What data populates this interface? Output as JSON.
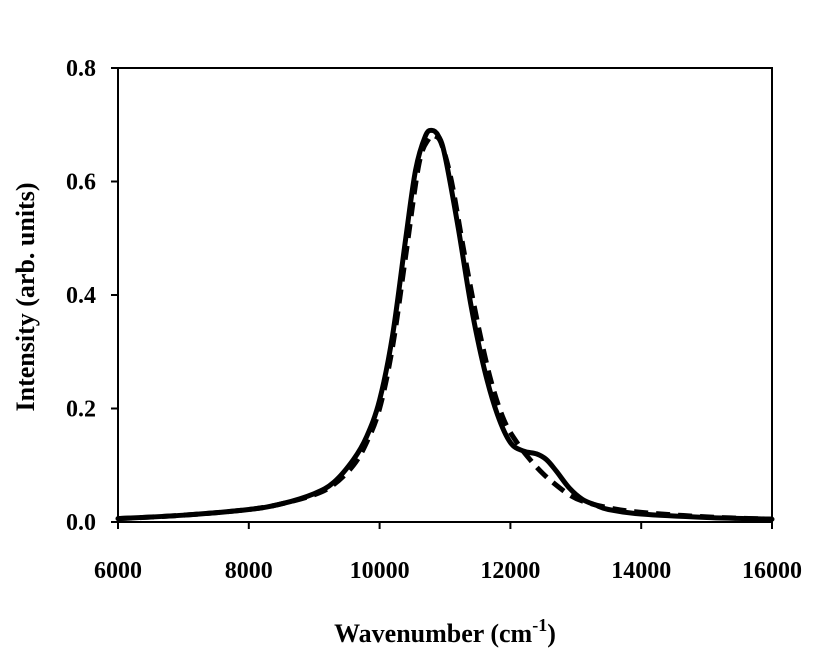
{
  "chart_data": {
    "type": "line",
    "xlabel": "Wavenumber (cm",
    "xlabel_sup": "-1",
    "xlabel_end": ")",
    "ylabel": "Intensity (arb. units)",
    "xlim": [
      6000,
      16000
    ],
    "ylim": [
      0.0,
      0.8
    ],
    "xticks": [
      6000,
      8000,
      10000,
      12000,
      14000,
      16000
    ],
    "xtick_labels": [
      "6000",
      "8000",
      "10000",
      "12000",
      "14000",
      "16000"
    ],
    "yticks": [
      0.0,
      0.2,
      0.4,
      0.6,
      0.8
    ],
    "ytick_labels": [
      "0.0",
      "0.2",
      "0.4",
      "0.6",
      "0.8"
    ],
    "grid": false,
    "series": [
      {
        "style": "solid",
        "color": "#000000",
        "x": [
          6000,
          7000,
          8000,
          8500,
          9000,
          9300,
          9600,
          9800,
          10000,
          10200,
          10400,
          10550,
          10700,
          10800,
          10900,
          11000,
          11200,
          11400,
          11600,
          11800,
          12000,
          12200,
          12400,
          12550,
          12700,
          12900,
          13100,
          13300,
          13500,
          14000,
          15000,
          16000
        ],
        "y": [
          0.006,
          0.012,
          0.022,
          0.032,
          0.05,
          0.07,
          0.11,
          0.15,
          0.215,
          0.33,
          0.5,
          0.62,
          0.68,
          0.69,
          0.68,
          0.645,
          0.52,
          0.38,
          0.27,
          0.19,
          0.14,
          0.125,
          0.12,
          0.11,
          0.09,
          0.06,
          0.04,
          0.03,
          0.022,
          0.014,
          0.008,
          0.005
        ]
      },
      {
        "style": "dashed",
        "color": "#000000",
        "x": [
          6000,
          7000,
          8000,
          8500,
          9000,
          9300,
          9600,
          9800,
          10000,
          10200,
          10400,
          10600,
          10750,
          10850,
          10950,
          11100,
          11300,
          11500,
          11700,
          11900,
          12100,
          12300,
          12500,
          12700,
          12900,
          13100,
          13500,
          14000,
          15000,
          16000
        ],
        "y": [
          0.006,
          0.012,
          0.022,
          0.032,
          0.048,
          0.066,
          0.1,
          0.14,
          0.2,
          0.31,
          0.47,
          0.63,
          0.675,
          0.68,
          0.665,
          0.6,
          0.47,
          0.35,
          0.25,
          0.18,
          0.14,
          0.11,
          0.085,
          0.065,
          0.048,
          0.037,
          0.025,
          0.017,
          0.009,
          0.005
        ]
      }
    ]
  }
}
